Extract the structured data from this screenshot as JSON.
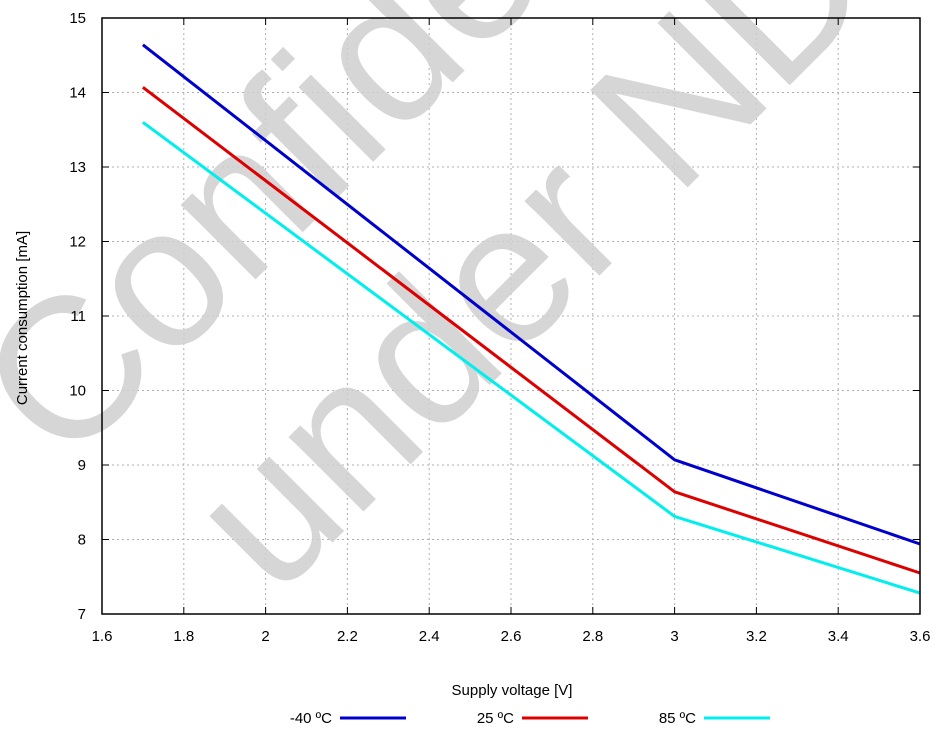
{
  "chart_data": {
    "type": "line",
    "title": "",
    "xlabel": "Supply voltage [V]",
    "ylabel": "Current consumption [mA]",
    "xlim": [
      1.6,
      3.6
    ],
    "ylim": [
      7,
      15
    ],
    "x_ticks": [
      1.6,
      1.8,
      2,
      2.2,
      2.4,
      2.6,
      2.8,
      3,
      3.2,
      3.4,
      3.6
    ],
    "x_tick_labels": [
      "1.6",
      "1.8",
      "2",
      "2.2",
      "2.4",
      "2.6",
      "2.8",
      "3",
      "3.2",
      "3.4",
      "3.6"
    ],
    "y_ticks": [
      7,
      8,
      9,
      10,
      11,
      12,
      13,
      14,
      15
    ],
    "y_tick_labels": [
      "7",
      "8",
      "9",
      "10",
      "11",
      "12",
      "13",
      "14",
      "15"
    ],
    "grid": true,
    "legend_position": "bottom",
    "series": [
      {
        "name": "-40 ºC",
        "color": "#0000cc",
        "x": [
          1.7,
          3.0,
          3.6
        ],
        "y": [
          14.64,
          9.07,
          7.94
        ]
      },
      {
        "name": "25 ºC",
        "color": "#dd0000",
        "x": [
          1.7,
          3.0,
          3.6
        ],
        "y": [
          14.07,
          8.64,
          7.55
        ]
      },
      {
        "name": "85 ºC",
        "color": "#00eeee",
        "x": [
          1.7,
          3.0,
          3.6
        ],
        "y": [
          13.6,
          8.31,
          7.28
        ]
      }
    ]
  },
  "watermark": {
    "line1": "Confidential",
    "line2": "under NDA"
  }
}
